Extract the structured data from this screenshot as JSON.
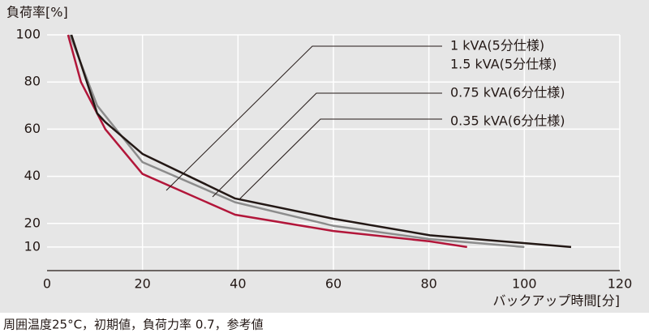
{
  "chart_data": {
    "type": "line",
    "y_label": "負荷率[%]",
    "x_label": "バックアップ時間[分]",
    "footnote": "周囲温度25°C，初期値，負荷力率 0.7，参考値",
    "xlim": [
      0,
      120
    ],
    "xticks": [
      0,
      20,
      40,
      60,
      80,
      100,
      120
    ],
    "ylim": [
      0,
      100
    ],
    "yticks": [
      10,
      20,
      40,
      60,
      80,
      100
    ],
    "grid": true,
    "series": [
      {
        "name": "1 kVA(5分仕様)",
        "name_2": "1.5 kVA(5分仕様)",
        "color": "#231815",
        "x": [
          5.1,
          10.5,
          12.2,
          20,
          39.4,
          60,
          80.2,
          109.8
        ],
        "values": [
          100,
          66.7,
          63,
          49.5,
          30.6,
          22,
          15,
          10
        ]
      },
      {
        "name": "0.75 kVA(6分仕様)",
        "color": "#8c8c8c",
        "x": [
          4.8,
          10.5,
          20,
          39.4,
          60,
          80,
          100
        ],
        "values": [
          100,
          70,
          46,
          29,
          19,
          13.4,
          10
        ]
      },
      {
        "name": "0.35 kVA(6分仕様)",
        "color": "#b2163a",
        "x": [
          4.4,
          7.1,
          12.2,
          20,
          39.4,
          60,
          80.2,
          88
        ],
        "values": [
          100,
          80,
          60,
          41,
          23.7,
          16.8,
          12.4,
          10
        ]
      }
    ]
  }
}
